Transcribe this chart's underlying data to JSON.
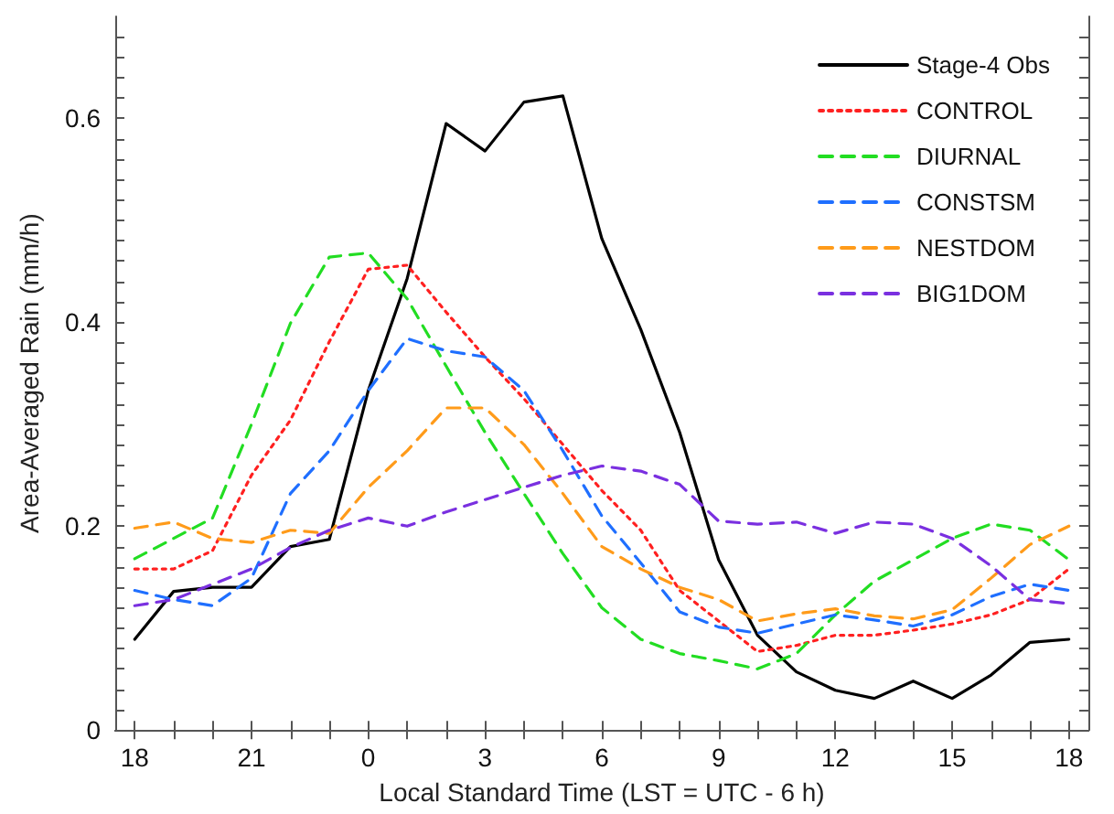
{
  "chart_data": {
    "type": "line",
    "xlabel": "Local Standard Time (LST = UTC - 6 h)",
    "ylabel": "Area-Averaged Rain (mm/h)",
    "categories": [
      "18",
      null,
      null,
      "21",
      null,
      null,
      "0",
      null,
      null,
      "3",
      null,
      null,
      "6",
      null,
      null,
      "9",
      null,
      null,
      "12",
      null,
      null,
      "15",
      null,
      null,
      "18"
    ],
    "ylim": [
      0,
      0.7
    ],
    "yticks": [
      0,
      {
        "value": 0.02,
        "label": null
      },
      {
        "value": 0.04,
        "label": null
      },
      {
        "value": 0.06,
        "label": null
      },
      {
        "value": 0.08,
        "label": null
      },
      {
        "value": 0.1,
        "label": null
      },
      {
        "value": 0.12,
        "label": null
      },
      {
        "value": 0.14,
        "label": null
      },
      {
        "value": 0.16,
        "label": null
      },
      {
        "value": 0.18,
        "label": null
      },
      0.2,
      {
        "value": 0.22,
        "label": null
      },
      {
        "value": 0.24,
        "label": null
      },
      {
        "value": 0.26,
        "label": null
      },
      {
        "value": 0.28,
        "label": null
      },
      {
        "value": 0.3,
        "label": null
      },
      {
        "value": 0.32,
        "label": null
      },
      {
        "value": 0.34,
        "label": null
      },
      {
        "value": 0.36,
        "label": null
      },
      {
        "value": 0.38,
        "label": null
      },
      0.4,
      {
        "value": 0.42,
        "label": null
      },
      {
        "value": 0.44,
        "label": null
      },
      {
        "value": 0.46,
        "label": null
      },
      {
        "value": 0.48,
        "label": null
      },
      {
        "value": 0.5,
        "label": null
      },
      {
        "value": 0.52,
        "label": null
      },
      {
        "value": 0.54,
        "label": null
      },
      {
        "value": 0.56,
        "label": null
      },
      {
        "value": 0.58,
        "label": null
      },
      0.6,
      {
        "value": 0.62,
        "label": null
      },
      {
        "value": 0.64,
        "label": null
      },
      {
        "value": 0.66,
        "label": null
      },
      {
        "value": 0.68,
        "label": null
      }
    ],
    "grid": false,
    "legend": "top right",
    "marker": "none",
    "series": [
      {
        "name": "Stage-4 Obs",
        "color": "#000000",
        "line_style": "solid",
        "values": [
          0.089,
          0.136,
          0.14,
          0.14,
          0.18,
          0.187,
          0.333,
          0.443,
          0.595,
          0.568,
          0.616,
          0.622,
          0.482,
          0.393,
          0.292,
          0.167,
          0.093,
          0.057,
          0.039,
          0.031,
          0.048,
          0.031,
          0.054,
          0.086,
          0.089
        ]
      },
      {
        "name": "CONTROL",
        "color": "#ff2020",
        "line_style": "dotted",
        "values": [
          0.158,
          0.158,
          0.176,
          0.25,
          0.304,
          0.381,
          0.452,
          0.456,
          0.41,
          0.366,
          0.325,
          0.28,
          0.235,
          0.196,
          0.137,
          0.107,
          0.077,
          0.083,
          0.093,
          0.093,
          0.098,
          0.104,
          0.113,
          0.128,
          0.158
        ]
      },
      {
        "name": "DIURNAL",
        "color": "#22dd22",
        "line_style": "dashed",
        "values": [
          0.168,
          0.188,
          0.208,
          0.3,
          0.399,
          0.464,
          0.468,
          0.423,
          0.357,
          0.292,
          0.232,
          0.173,
          0.12,
          0.089,
          0.075,
          0.068,
          0.06,
          0.075,
          0.113,
          0.146,
          0.167,
          0.188,
          0.202,
          0.196,
          0.167
        ]
      },
      {
        "name": "CONSTSM",
        "color": "#1f6fff",
        "line_style": "dashed",
        "values": [
          0.137,
          0.128,
          0.122,
          0.149,
          0.232,
          0.274,
          0.333,
          0.384,
          0.372,
          0.366,
          0.333,
          0.274,
          0.21,
          0.164,
          0.116,
          0.101,
          0.095,
          0.104,
          0.113,
          0.108,
          0.102,
          0.113,
          0.131,
          0.143,
          0.137
        ]
      },
      {
        "name": "NESTDOM",
        "color": "#ff9b1a",
        "line_style": "dashed",
        "values": [
          0.198,
          0.204,
          0.188,
          0.184,
          0.196,
          0.193,
          0.238,
          0.274,
          0.316,
          0.316,
          0.28,
          0.232,
          0.18,
          0.158,
          0.14,
          0.128,
          0.107,
          0.114,
          0.119,
          0.112,
          0.109,
          0.118,
          0.149,
          0.182,
          0.2
        ]
      },
      {
        "name": "BIG1DOM",
        "color": "#7a30e0",
        "line_style": "dashed",
        "values": [
          0.122,
          0.128,
          0.143,
          0.158,
          0.179,
          0.196,
          0.208,
          0.2,
          0.214,
          0.226,
          0.238,
          0.25,
          0.259,
          0.254,
          0.241,
          0.205,
          0.202,
          0.204,
          0.193,
          0.204,
          0.202,
          0.188,
          0.161,
          0.128,
          0.124
        ]
      }
    ]
  }
}
